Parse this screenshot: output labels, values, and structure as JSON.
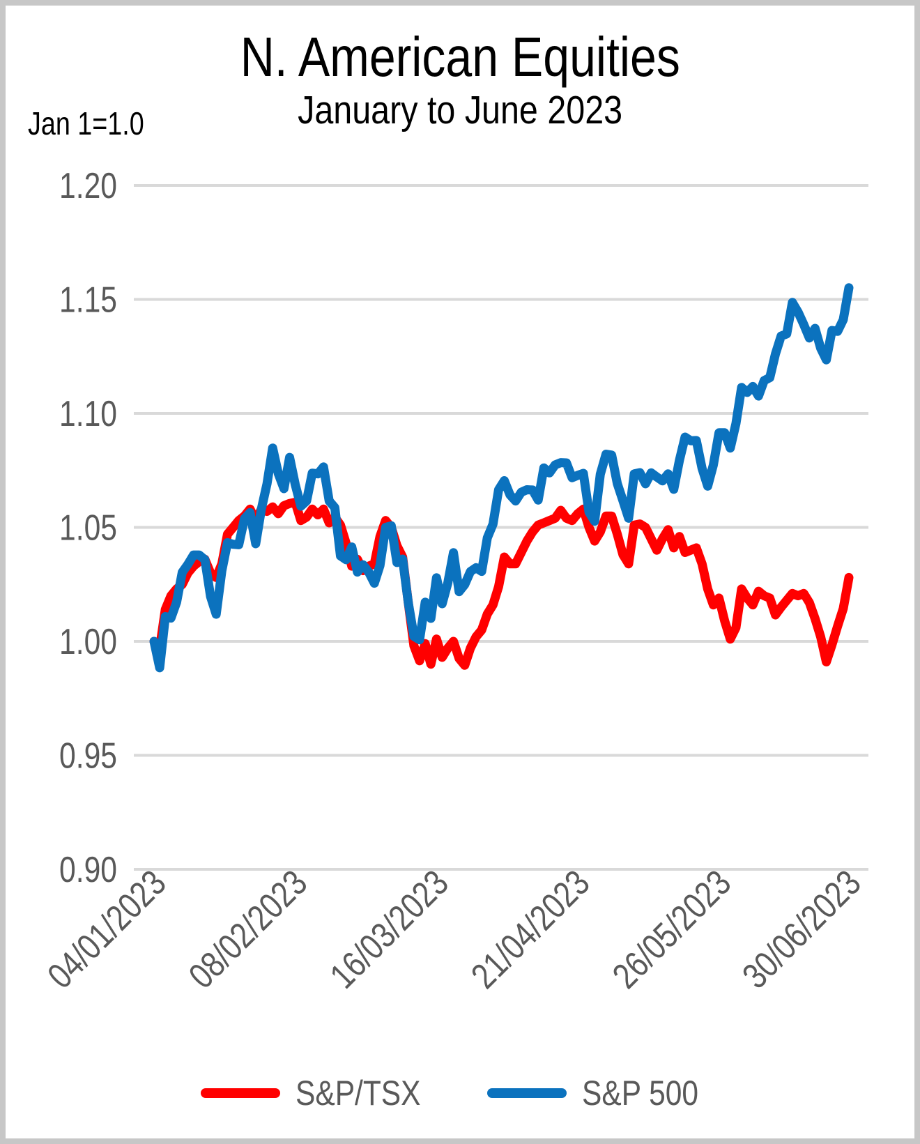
{
  "chart_data": {
    "type": "line",
    "title": "N. American Equities",
    "subtitle": "January to June 2023",
    "axis_note": "Jan 1=1.0",
    "grid_on": true,
    "colors": {
      "grid": "#d9d9d9",
      "axis_text": "#595959",
      "title_text": "#000000",
      "frame_border": "#c7c7c7",
      "background": "#ffffff"
    },
    "y_axis": {
      "min": 0.9,
      "max": 1.2,
      "tick_step": 0.05,
      "tick_labels": [
        "1.20",
        "1.15",
        "1.10",
        "1.05",
        "1.00",
        "0.95",
        "0.90"
      ]
    },
    "x_axis": {
      "tick_labels": [
        "04/01/2023",
        "08/02/2023",
        "16/03/2023",
        "21/04/2023",
        "26/05/2023",
        "30/06/2023"
      ],
      "tick_indices": [
        0,
        25,
        50,
        75,
        100,
        123
      ],
      "point_count": 124,
      "rotation_deg": 45
    },
    "legend": [
      {
        "label": "S&P/TSX",
        "color": "#ff0000"
      },
      {
        "label": "S&P 500",
        "color": "#0b72be"
      }
    ],
    "series": [
      {
        "name": "S&P/TSX",
        "color": "#ff0000",
        "values": [
          1.0,
          0.997,
          1.014,
          1.02,
          1.023,
          1.025,
          1.03,
          1.033,
          1.035,
          1.036,
          1.03,
          1.028,
          1.034,
          1.047,
          1.05,
          1.053,
          1.055,
          1.058,
          1.053,
          1.058,
          1.057,
          1.059,
          1.056,
          1.0595,
          1.0605,
          1.061,
          1.053,
          1.0545,
          1.058,
          1.0555,
          1.058,
          1.052,
          1.0545,
          1.051,
          1.043,
          1.033,
          1.036,
          1.031,
          1.033,
          1.034,
          1.046,
          1.053,
          1.05,
          1.042,
          1.037,
          1.017,
          0.998,
          0.9915,
          0.999,
          0.99,
          1.001,
          0.993,
          0.997,
          1.0,
          0.9925,
          0.9895,
          0.997,
          1.002,
          1.005,
          1.012,
          1.016,
          1.024,
          1.037,
          1.034,
          1.034,
          1.039,
          1.044,
          1.048,
          1.051,
          1.052,
          1.053,
          1.054,
          1.0575,
          1.054,
          1.053,
          1.056,
          1.058,
          1.05,
          1.044,
          1.048,
          1.055,
          1.055,
          1.047,
          1.038,
          1.034,
          1.051,
          1.0515,
          1.05,
          1.045,
          1.04,
          1.045,
          1.049,
          1.041,
          1.046,
          1.039,
          1.04,
          1.041,
          1.034,
          1.023,
          1.016,
          1.019,
          1.009,
          1.001,
          1.006,
          1.023,
          1.019,
          1.016,
          1.022,
          1.02,
          1.019,
          1.0116,
          1.015,
          1.018,
          1.021,
          1.02,
          1.021,
          1.017,
          1.01,
          1.002,
          0.991,
          0.9985,
          1.0067,
          1.0144,
          1.028
        ]
      },
      {
        "name": "S&P 500",
        "color": "#0b72be",
        "values": [
          1.0,
          0.9884,
          1.0109,
          1.0102,
          1.0172,
          1.0303,
          1.0338,
          1.0379,
          1.0379,
          1.0358,
          1.0197,
          1.0119,
          1.031,
          1.0433,
          1.0426,
          1.0424,
          1.0538,
          1.0565,
          1.0428,
          1.058,
          1.0691,
          1.0848,
          1.0736,
          1.067,
          1.0807,
          1.0688,
          1.0593,
          1.0616,
          1.0738,
          1.0735,
          1.0765,
          1.0616,
          1.0587,
          1.0375,
          1.0358,
          1.0414,
          1.0304,
          1.0336,
          1.0304,
          1.0255,
          1.0333,
          1.05,
          1.0507,
          1.0346,
          1.0361,
          1.017,
          1.0022,
          1.0007,
          1.0172,
          1.0101,
          1.0279,
          1.0165,
          1.0256,
          1.0389,
          1.0218,
          1.0249,
          1.0306,
          1.0323,
          1.0307,
          1.0454,
          1.0514,
          1.0665,
          1.0705,
          1.0643,
          1.0616,
          1.0654,
          1.0665,
          1.0664,
          1.062,
          1.0761,
          1.0739,
          1.0774,
          1.0784,
          1.0783,
          1.0718,
          1.0728,
          1.0737,
          1.0567,
          1.0527,
          1.0733,
          1.0821,
          1.0817,
          1.0692,
          1.0617,
          1.054,
          1.0735,
          1.074,
          1.0691,
          1.0739,
          1.0721,
          1.0704,
          1.0735,
          1.0667,
          1.0794,
          1.0896,
          1.088,
          1.0881,
          1.0759,
          1.0681,
          1.0774,
          1.0915,
          1.0915,
          1.0848,
          1.0955,
          1.1114,
          1.1092,
          1.1118,
          1.1076,
          1.1144,
          1.1157,
          1.1261,
          1.1339,
          1.1349,
          1.1487,
          1.1445,
          1.139,
          1.1331,
          1.1373,
          1.1286,
          1.1235,
          1.1364,
          1.136,
          1.1411,
          1.1551
        ]
      }
    ]
  }
}
